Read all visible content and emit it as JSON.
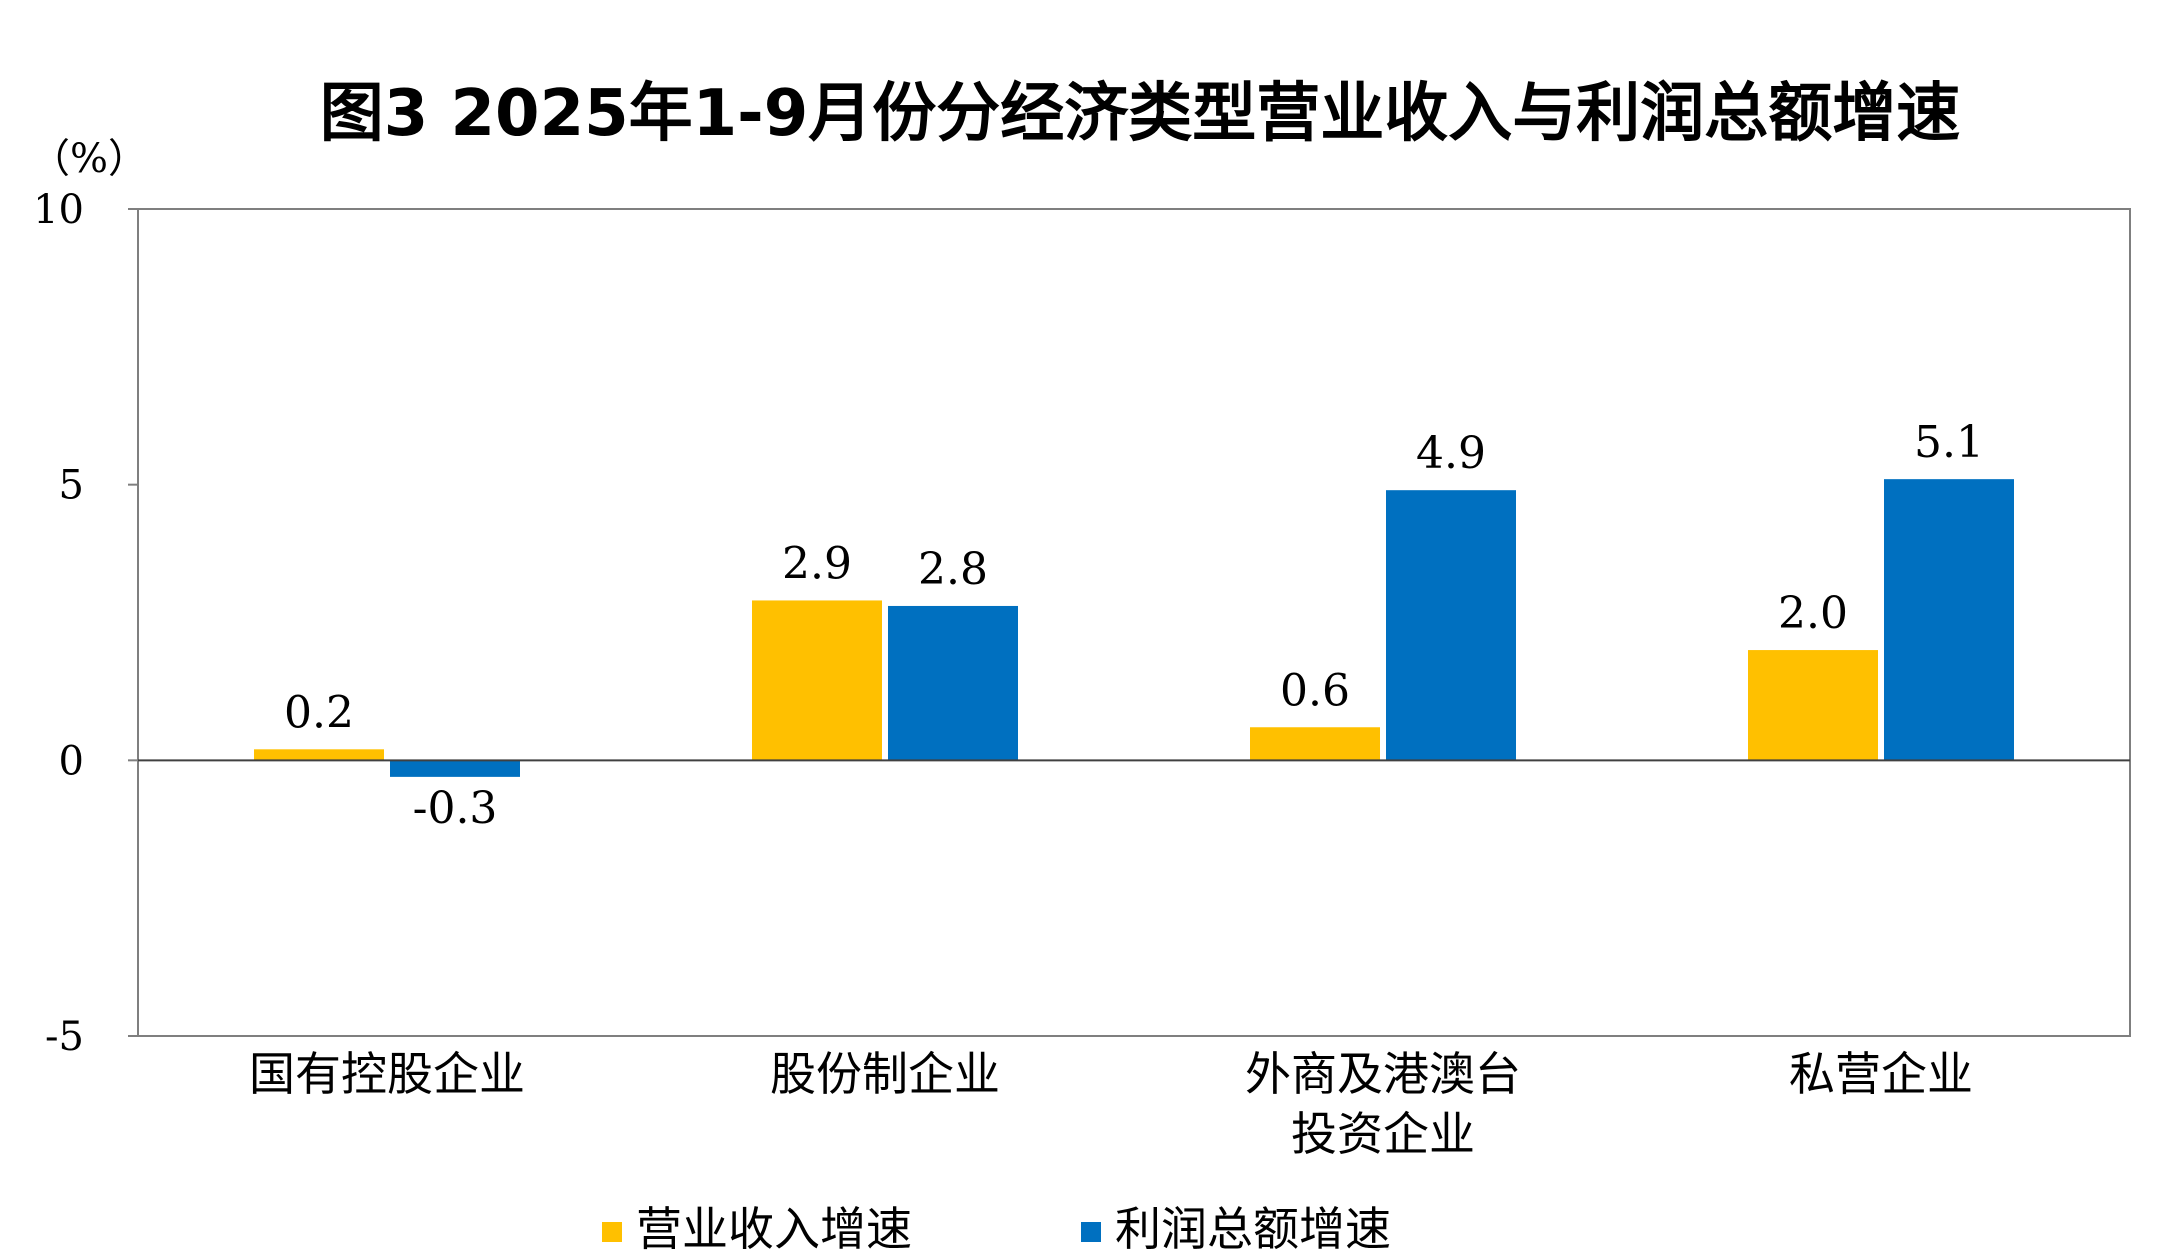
{
  "chart_data": {
    "type": "bar",
    "title": "图3  2025年1-9月份分经济类型营业收入与利润总额增速",
    "unit_label": "（%）",
    "categories": [
      [
        "国有控股企业"
      ],
      [
        "股份制企业"
      ],
      [
        "外商及港澳台",
        "投资企业"
      ],
      [
        "私营企业"
      ]
    ],
    "series": [
      {
        "name": "营业收入增速",
        "color": "#FFC000",
        "values": [
          0.2,
          2.9,
          0.6,
          2.0
        ],
        "labels": [
          "0.2",
          "2.9",
          "0.6",
          "2.0"
        ]
      },
      {
        "name": "利润总额增速",
        "color": "#0070C0",
        "values": [
          -0.3,
          2.8,
          4.9,
          5.1
        ],
        "labels": [
          "-0.3",
          "2.8",
          "4.9",
          "5.1"
        ]
      }
    ],
    "ylim": [
      -5,
      10
    ],
    "yticks": [
      -5,
      0,
      5,
      10
    ],
    "ytick_labels": [
      "-5",
      "0",
      "5",
      "10"
    ],
    "grid": false,
    "legend_position": "bottom"
  }
}
